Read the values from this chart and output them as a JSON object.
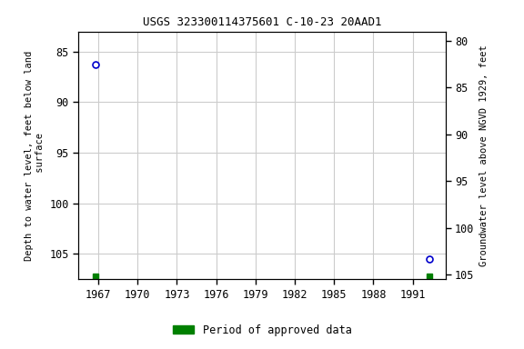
{
  "title": "USGS 323300114375601 C-10-23 20AAD1",
  "ylabel_left": "Depth to water level, feet below land\n surface",
  "ylabel_right": "Groundwater level above NGVD 1929, feet",
  "xlim": [
    1965.5,
    1993.5
  ],
  "ylim_left": [
    83.0,
    107.5
  ],
  "ylim_right": [
    79.0,
    105.5
  ],
  "yticks_left": [
    85,
    90,
    95,
    100,
    105
  ],
  "yticks_right": [
    80,
    85,
    90,
    95,
    100,
    105
  ],
  "xticks": [
    1967,
    1970,
    1973,
    1976,
    1979,
    1982,
    1985,
    1988,
    1991
  ],
  "data_points": [
    {
      "year": 1966.8,
      "depth": 86.3
    },
    {
      "year": 1992.3,
      "depth": 105.5
    }
  ],
  "green_squares": [
    {
      "year": 1966.8,
      "depth": 107.2
    },
    {
      "year": 1992.3,
      "depth": 107.2
    }
  ],
  "point_color": "#0000cc",
  "point_size": 5,
  "grid_color": "#cccccc",
  "background_color": "#ffffff",
  "font_family": "monospace",
  "legend_label": "Period of approved data",
  "legend_color": "#008000",
  "title_fontsize": 9,
  "tick_fontsize": 8.5,
  "ylabel_fontsize": 7.5
}
